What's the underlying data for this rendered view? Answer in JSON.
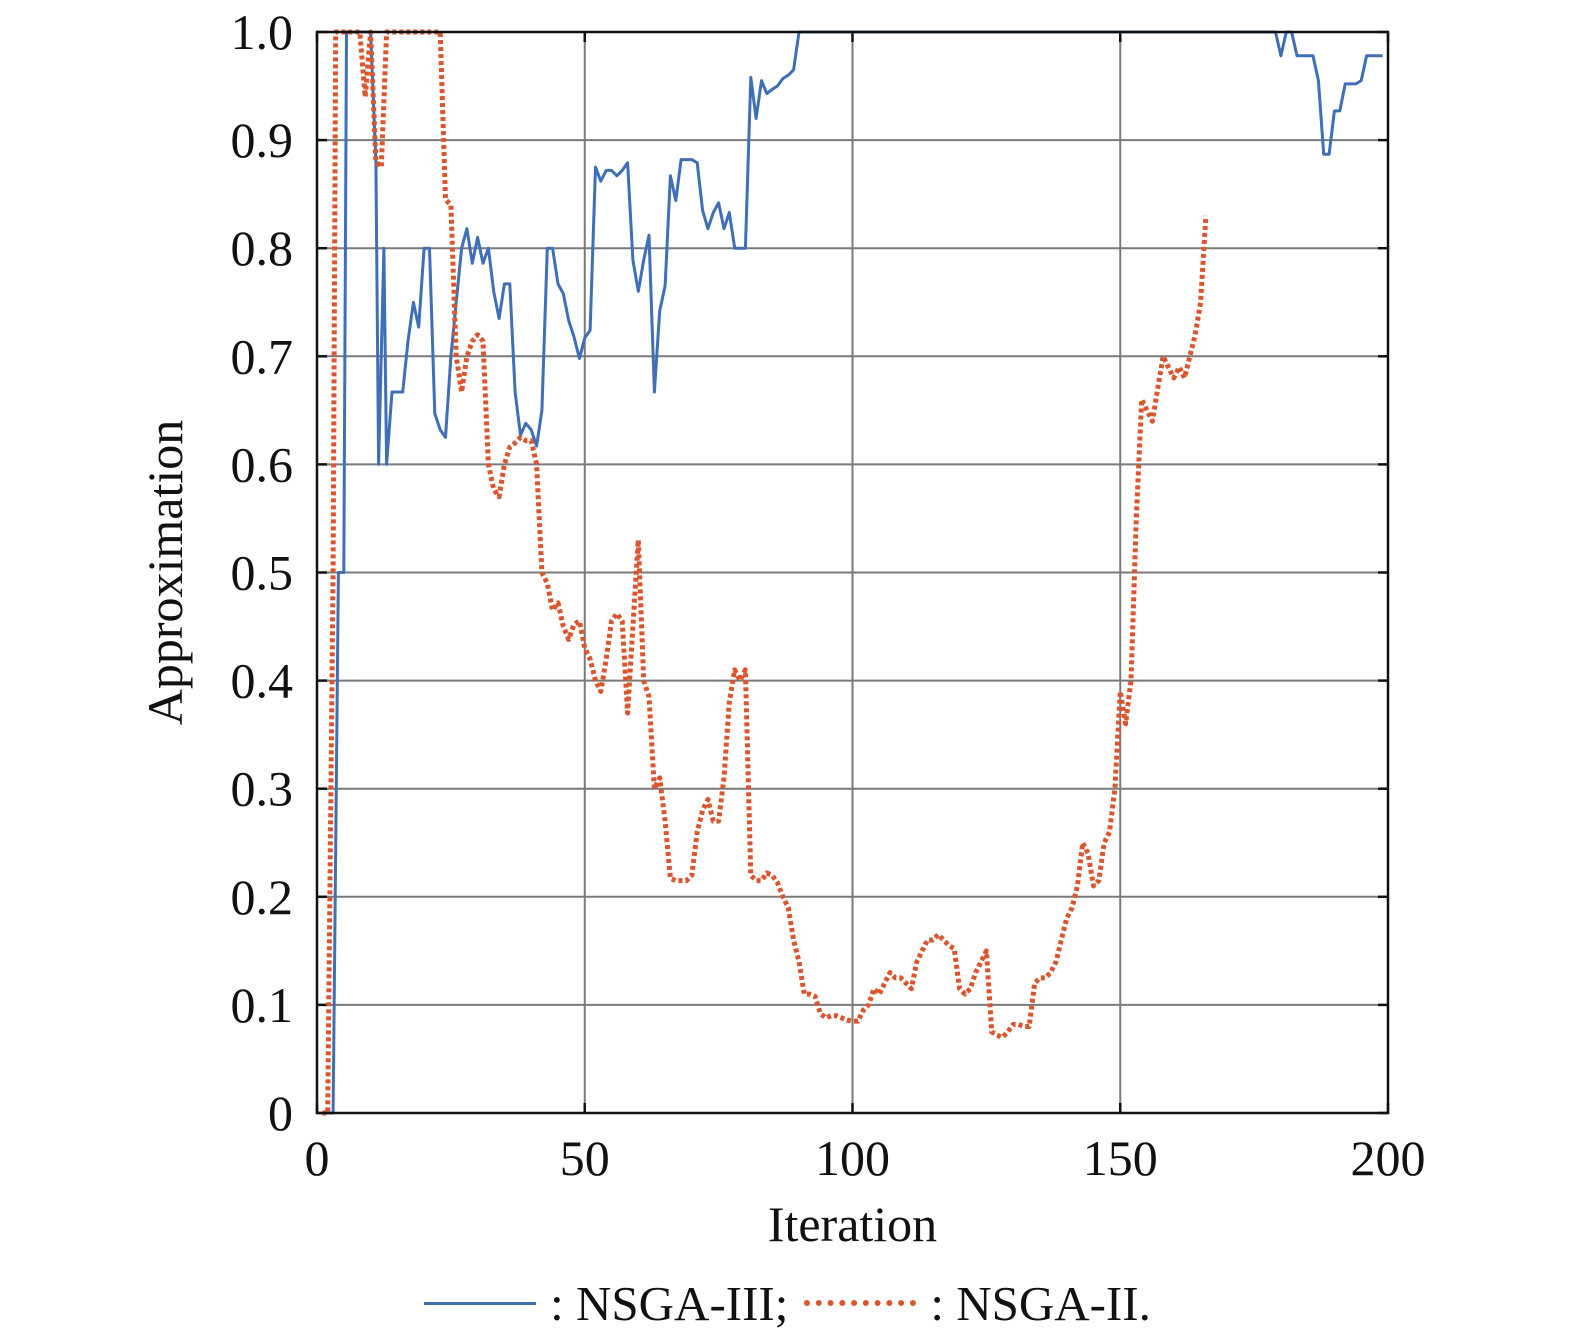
{
  "chart_data": {
    "type": "line",
    "title": "",
    "xlabel": "Iteration",
    "ylabel": "Approximation",
    "xlim": [
      0,
      200
    ],
    "ylim": [
      0,
      1.0
    ],
    "xticks": [
      0,
      50,
      100,
      150,
      200
    ],
    "xtick_labels": [
      "0",
      "50",
      "100",
      "150",
      "200"
    ],
    "yticks": [
      0,
      0.1,
      0.2,
      0.3,
      0.4,
      0.5,
      0.6,
      0.7,
      0.8,
      0.9,
      1.0
    ],
    "ytick_labels": [
      "0",
      "0.1",
      "0.2",
      "0.3",
      "0.4",
      "0.5",
      "0.6",
      "0.7",
      "0.8",
      "0.9",
      "1.0"
    ],
    "grid": true,
    "legend_position": "bottom",
    "series": [
      {
        "name": "NSGA-III",
        "legend_label": ": NSGA-III;",
        "color": "#3f6fb5",
        "style": "solid",
        "points": [
          [
            1,
            0
          ],
          [
            2,
            0
          ],
          [
            3,
            0
          ],
          [
            4,
            0.5
          ],
          [
            5,
            0.5
          ],
          [
            5.5,
            1.0
          ],
          [
            10,
            1.0
          ],
          [
            11,
            0.88
          ],
          [
            11.5,
            0.6
          ],
          [
            12.5,
            0.8
          ],
          [
            13,
            0.6
          ],
          [
            14,
            0.667
          ],
          [
            16,
            0.667
          ],
          [
            17,
            0.714
          ],
          [
            18,
            0.75
          ],
          [
            19,
            0.727
          ],
          [
            20,
            0.8
          ],
          [
            21,
            0.8
          ],
          [
            22,
            0.647
          ],
          [
            23,
            0.632
          ],
          [
            24,
            0.625
          ],
          [
            25,
            0.7
          ],
          [
            26,
            0.75
          ],
          [
            27,
            0.8
          ],
          [
            28,
            0.818
          ],
          [
            29,
            0.786
          ],
          [
            30,
            0.81
          ],
          [
            31,
            0.786
          ],
          [
            32,
            0.8
          ],
          [
            33,
            0.76
          ],
          [
            34,
            0.735
          ],
          [
            35,
            0.767
          ],
          [
            36,
            0.767
          ],
          [
            37,
            0.667
          ],
          [
            38,
            0.627
          ],
          [
            39,
            0.638
          ],
          [
            40,
            0.632
          ],
          [
            41,
            0.617
          ],
          [
            42,
            0.65
          ],
          [
            43,
            0.8
          ],
          [
            44,
            0.8
          ],
          [
            45,
            0.767
          ],
          [
            46,
            0.758
          ],
          [
            47,
            0.733
          ],
          [
            48,
            0.718
          ],
          [
            49,
            0.698
          ],
          [
            50,
            0.717
          ],
          [
            51,
            0.724
          ],
          [
            52,
            0.875
          ],
          [
            53,
            0.862
          ],
          [
            54,
            0.872
          ],
          [
            55,
            0.872
          ],
          [
            56,
            0.867
          ],
          [
            57,
            0.872
          ],
          [
            58,
            0.879
          ],
          [
            59,
            0.789
          ],
          [
            60,
            0.76
          ],
          [
            61,
            0.789
          ],
          [
            62,
            0.812
          ],
          [
            63,
            0.667
          ],
          [
            64,
            0.742
          ],
          [
            65,
            0.765
          ],
          [
            66,
            0.867
          ],
          [
            67,
            0.844
          ],
          [
            68,
            0.882
          ],
          [
            69,
            0.882
          ],
          [
            70,
            0.882
          ],
          [
            71,
            0.879
          ],
          [
            72,
            0.835
          ],
          [
            73,
            0.818
          ],
          [
            74,
            0.833
          ],
          [
            75,
            0.842
          ],
          [
            76,
            0.818
          ],
          [
            77,
            0.833
          ],
          [
            78,
            0.8
          ],
          [
            80,
            0.8
          ],
          [
            81,
            0.958
          ],
          [
            82,
            0.92
          ],
          [
            83,
            0.955
          ],
          [
            84,
            0.943
          ],
          [
            85,
            0.947
          ],
          [
            86,
            0.95
          ],
          [
            87,
            0.957
          ],
          [
            88,
            0.96
          ],
          [
            89,
            0.965
          ],
          [
            90,
            1.0
          ],
          [
            179,
            1.0
          ],
          [
            180,
            0.978
          ],
          [
            181,
            1.0
          ],
          [
            182,
            1.0
          ],
          [
            183,
            0.978
          ],
          [
            186,
            0.978
          ],
          [
            187,
            0.955
          ],
          [
            188,
            0.887
          ],
          [
            189,
            0.887
          ],
          [
            190,
            0.927
          ],
          [
            191,
            0.927
          ],
          [
            192,
            0.952
          ],
          [
            194,
            0.952
          ],
          [
            195,
            0.955
          ],
          [
            196,
            0.978
          ],
          [
            199,
            0.978
          ]
        ]
      },
      {
        "name": "NSGA-II",
        "legend_label": ": NSGA-II.",
        "color": "#d9562e",
        "style": "dotted",
        "points": [
          [
            1,
            0
          ],
          [
            2,
            0
          ],
          [
            3,
            0.5
          ],
          [
            3.5,
            1.0
          ],
          [
            8,
            1.0
          ],
          [
            9,
            0.94
          ],
          [
            10,
            1.0
          ],
          [
            11,
            0.88
          ],
          [
            12,
            0.875
          ],
          [
            13,
            1.0
          ],
          [
            23,
            1.0
          ],
          [
            24,
            0.845
          ],
          [
            25,
            0.84
          ],
          [
            26,
            0.7
          ],
          [
            27,
            0.667
          ],
          [
            28,
            0.7
          ],
          [
            29,
            0.714
          ],
          [
            30,
            0.72
          ],
          [
            31,
            0.714
          ],
          [
            32,
            0.6
          ],
          [
            33,
            0.577
          ],
          [
            34,
            0.57
          ],
          [
            35,
            0.6
          ],
          [
            36,
            0.616
          ],
          [
            37,
            0.62
          ],
          [
            38,
            0.625
          ],
          [
            39,
            0.622
          ],
          [
            40,
            0.622
          ],
          [
            41,
            0.6
          ],
          [
            42,
            0.5
          ],
          [
            43,
            0.49
          ],
          [
            44,
            0.465
          ],
          [
            45,
            0.472
          ],
          [
            46,
            0.45
          ],
          [
            47,
            0.438
          ],
          [
            48,
            0.452
          ],
          [
            49,
            0.455
          ],
          [
            50,
            0.43
          ],
          [
            51,
            0.42
          ],
          [
            52,
            0.4
          ],
          [
            53,
            0.39
          ],
          [
            54,
            0.42
          ],
          [
            55,
            0.455
          ],
          [
            56,
            0.462
          ],
          [
            57,
            0.455
          ],
          [
            58,
            0.37
          ],
          [
            59,
            0.45
          ],
          [
            60,
            0.53
          ],
          [
            61,
            0.4
          ],
          [
            62,
            0.385
          ],
          [
            63,
            0.3
          ],
          [
            64,
            0.31
          ],
          [
            65,
            0.27
          ],
          [
            66,
            0.217
          ],
          [
            67,
            0.215
          ],
          [
            68,
            0.215
          ],
          [
            69,
            0.215
          ],
          [
            70,
            0.22
          ],
          [
            71,
            0.26
          ],
          [
            72,
            0.28
          ],
          [
            73,
            0.29
          ],
          [
            74,
            0.27
          ],
          [
            75,
            0.27
          ],
          [
            76,
            0.31
          ],
          [
            77,
            0.38
          ],
          [
            78,
            0.41
          ],
          [
            79,
            0.4
          ],
          [
            80,
            0.41
          ],
          [
            81,
            0.22
          ],
          [
            82,
            0.215
          ],
          [
            83,
            0.215
          ],
          [
            84,
            0.222
          ],
          [
            85,
            0.22
          ],
          [
            86,
            0.213
          ],
          [
            87,
            0.2
          ],
          [
            88,
            0.19
          ],
          [
            89,
            0.16
          ],
          [
            90,
            0.14
          ],
          [
            91,
            0.11
          ],
          [
            92,
            0.11
          ],
          [
            93,
            0.108
          ],
          [
            94,
            0.092
          ],
          [
            95,
            0.088
          ],
          [
            96,
            0.09
          ],
          [
            97,
            0.09
          ],
          [
            98,
            0.088
          ],
          [
            99,
            0.086
          ],
          [
            100,
            0.085
          ],
          [
            101,
            0.085
          ],
          [
            102,
            0.095
          ],
          [
            103,
            0.1
          ],
          [
            104,
            0.115
          ],
          [
            105,
            0.11
          ],
          [
            106,
            0.12
          ],
          [
            107,
            0.13
          ],
          [
            108,
            0.125
          ],
          [
            109,
            0.125
          ],
          [
            110,
            0.12
          ],
          [
            111,
            0.115
          ],
          [
            112,
            0.14
          ],
          [
            113,
            0.15
          ],
          [
            114,
            0.16
          ],
          [
            115,
            0.16
          ],
          [
            116,
            0.165
          ],
          [
            117,
            0.16
          ],
          [
            118,
            0.155
          ],
          [
            119,
            0.152
          ],
          [
            120,
            0.115
          ],
          [
            121,
            0.11
          ],
          [
            122,
            0.115
          ],
          [
            123,
            0.13
          ],
          [
            124,
            0.14
          ],
          [
            125,
            0.15
          ],
          [
            126,
            0.075
          ],
          [
            127,
            0.072
          ],
          [
            128,
            0.07
          ],
          [
            129,
            0.075
          ],
          [
            130,
            0.082
          ],
          [
            131,
            0.082
          ],
          [
            132,
            0.08
          ],
          [
            133,
            0.08
          ],
          [
            134,
            0.12
          ],
          [
            135,
            0.125
          ],
          [
            136,
            0.125
          ],
          [
            137,
            0.13
          ],
          [
            138,
            0.14
          ],
          [
            139,
            0.16
          ],
          [
            140,
            0.18
          ],
          [
            141,
            0.19
          ],
          [
            142,
            0.21
          ],
          [
            143,
            0.25
          ],
          [
            144,
            0.24
          ],
          [
            145,
            0.21
          ],
          [
            146,
            0.215
          ],
          [
            147,
            0.25
          ],
          [
            148,
            0.26
          ],
          [
            149,
            0.3
          ],
          [
            150,
            0.39
          ],
          [
            151,
            0.36
          ],
          [
            152,
            0.4
          ],
          [
            153,
            0.55
          ],
          [
            154,
            0.66
          ],
          [
            155,
            0.65
          ],
          [
            156,
            0.64
          ],
          [
            157,
            0.67
          ],
          [
            158,
            0.7
          ],
          [
            159,
            0.69
          ],
          [
            160,
            0.68
          ],
          [
            161,
            0.69
          ],
          [
            162,
            0.68
          ],
          [
            163,
            0.7
          ],
          [
            164,
            0.72
          ],
          [
            165,
            0.75
          ],
          [
            166,
            0.83
          ]
        ]
      }
    ]
  }
}
